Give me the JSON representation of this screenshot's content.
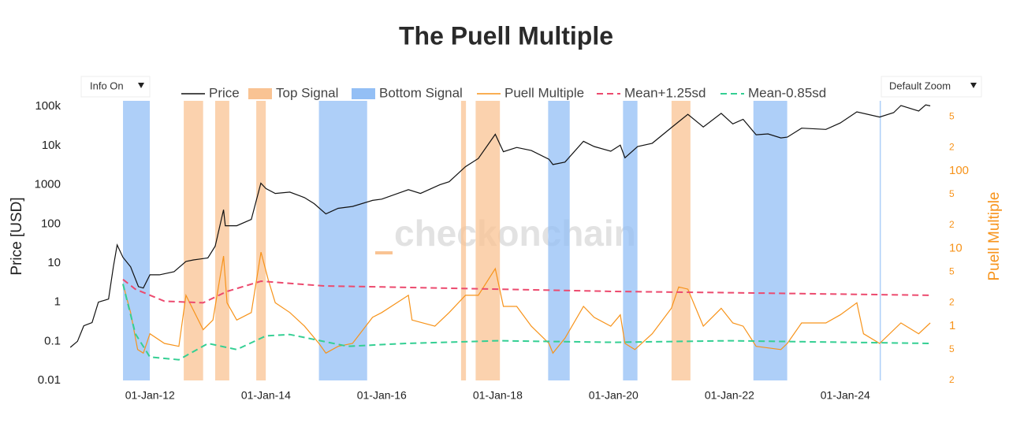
{
  "chart_data": {
    "type": "line",
    "title": "The Puell Multiple",
    "controls": [
      "Info On",
      "Default Zoom"
    ],
    "watermark": "checkonchain",
    "y_label": "Price [USD]",
    "y2_label": "Puell Multiple",
    "log_y": true,
    "log_y2": true,
    "grid": false,
    "xlim": [
      "2010-07-27",
      "2025-08-08"
    ],
    "xticks": [
      {
        "value": "2012-01-01",
        "label": "01-Jan-12"
      },
      {
        "value": "2014-01-01",
        "label": "01-Jan-14"
      },
      {
        "value": "2016-01-01",
        "label": "01-Jan-16"
      },
      {
        "value": "2018-01-01",
        "label": "01-Jan-18"
      },
      {
        "value": "2020-01-01",
        "label": "01-Jan-20"
      },
      {
        "value": "2022-01-01",
        "label": "01-Jan-22"
      },
      {
        "value": "2024-01-01",
        "label": "01-Jan-24"
      }
    ],
    "ylim": [
      0.01,
      140000
    ],
    "yticks": [
      0.01,
      0.1,
      1,
      10,
      100,
      1000,
      {
        "value": 10000,
        "label": "10k"
      },
      {
        "value": 100000,
        "label": "100k"
      }
    ],
    "y2lim": [
      0.2,
      800
    ],
    "y2ticks": [
      {
        "value": 0.2,
        "label": "2"
      },
      {
        "value": 0.5,
        "label": "5"
      },
      1,
      {
        "value": 2,
        "label": "2"
      },
      {
        "value": 5,
        "label": "5"
      },
      10,
      {
        "value": 20,
        "label": "2"
      },
      {
        "value": 50,
        "label": "5"
      },
      100,
      {
        "value": 200,
        "label": "2"
      },
      {
        "value": 500,
        "label": "5"
      }
    ],
    "y2_color": "#f7931a",
    "series": [
      {
        "name": "Price",
        "color": "#111111",
        "x": [
          "2010-08-17",
          "2010-10-01",
          "2010-11-10",
          "2011-01-01",
          "2011-02-10",
          "2011-04-15",
          "2011-05-15",
          "2011-06-08",
          "2011-07-15",
          "2011-09-01",
          "2011-10-20",
          "2011-11-20",
          "2012-01-01",
          "2012-03-01",
          "2012-06-01",
          "2012-08-15",
          "2012-10-01",
          "2012-12-31",
          "2013-02-15",
          "2013-04-09",
          "2013-04-20",
          "2013-07-01",
          "2013-10-01",
          "2013-11-30",
          "2014-01-01",
          "2014-03-01",
          "2014-06-01",
          "2014-09-01",
          "2014-11-01",
          "2015-01-14",
          "2015-04-01",
          "2015-07-01",
          "2015-11-04",
          "2016-01-01",
          "2016-06-17",
          "2016-09-01",
          "2017-01-01",
          "2017-03-01",
          "2017-06-12",
          "2017-09-01",
          "2017-12-17",
          "2018-02-06",
          "2018-05-01",
          "2018-08-01",
          "2018-11-20",
          "2018-12-15",
          "2019-03-01",
          "2019-06-26",
          "2019-09-01",
          "2019-12-15",
          "2020-02-13",
          "2020-03-13",
          "2020-06-01",
          "2020-09-01",
          "2020-12-31",
          "2021-04-14",
          "2021-07-20",
          "2021-11-10",
          "2022-01-22",
          "2022-03-28",
          "2022-06-18",
          "2022-09-01",
          "2022-11-21",
          "2023-01-01",
          "2023-04-01",
          "2023-09-01",
          "2023-12-01",
          "2024-03-14",
          "2024-08-05",
          "2024-11-01",
          "2024-12-17",
          "2025-04-08",
          "2025-05-22",
          "2025-06-20"
        ],
        "values": [
          0.07,
          0.1,
          0.25,
          0.3,
          1,
          1.2,
          8,
          29,
          14,
          8,
          2.5,
          2.3,
          5,
          5,
          6,
          11,
          12,
          13.5,
          27,
          230,
          90,
          90,
          130,
          1100,
          800,
          600,
          650,
          470,
          330,
          180,
          250,
          280,
          400,
          430,
          750,
          600,
          1000,
          1200,
          2900,
          4700,
          19500,
          7000,
          9000,
          7500,
          4500,
          3300,
          3800,
          12900,
          9500,
          7200,
          10300,
          4900,
          9500,
          11500,
          29000,
          63000,
          30000,
          67000,
          36000,
          47000,
          19000,
          20000,
          15800,
          16500,
          28000,
          26000,
          38000,
          73000,
          54000,
          70000,
          106000,
          77000,
          110000,
          104000
        ]
      },
      {
        "name": "Top Signal",
        "color": "#f9c393",
        "ranges": [
          [
            "2012-08-01",
            "2012-12-01"
          ],
          [
            "2013-02-15",
            "2013-05-15"
          ],
          [
            "2013-11-01",
            "2013-12-31"
          ],
          [
            "2017-05-15",
            "2017-06-15"
          ],
          [
            "2017-08-15",
            "2018-01-15"
          ],
          [
            "2021-01-01",
            "2021-04-30"
          ]
        ]
      },
      {
        "name": "Bottom Signal",
        "color": "#93bff5",
        "ranges": [
          [
            "2011-07-15",
            "2011-12-31"
          ],
          [
            "2014-12-01",
            "2015-10-01"
          ],
          [
            "2018-11-15",
            "2019-03-31"
          ],
          [
            "2020-03-01",
            "2020-05-31"
          ],
          [
            "2022-06-01",
            "2022-12-31"
          ],
          [
            "2024-08-05",
            "2024-08-10"
          ]
        ]
      },
      {
        "name": "Puell Multiple",
        "color": "#f7931a",
        "axis": "y2",
        "x": [
          "2011-07-15",
          "2011-09-01",
          "2011-10-15",
          "2011-11-20",
          "2012-01-01",
          "2012-04-01",
          "2012-07-01",
          "2012-08-15",
          "2012-12-01",
          "2013-02-01",
          "2013-04-09",
          "2013-05-01",
          "2013-07-01",
          "2013-10-01",
          "2013-12-01",
          "2014-01-15",
          "2014-03-01",
          "2014-06-01",
          "2014-09-01",
          "2014-12-01",
          "2015-01-14",
          "2015-04-01",
          "2015-07-01",
          "2015-11-04",
          "2016-01-01",
          "2016-06-17",
          "2016-07-10",
          "2016-12-01",
          "2017-03-01",
          "2017-06-12",
          "2017-09-01",
          "2017-12-17",
          "2018-02-06",
          "2018-05-01",
          "2018-08-01",
          "2018-11-20",
          "2018-12-15",
          "2019-03-01",
          "2019-06-26",
          "2019-09-01",
          "2019-12-15",
          "2020-02-13",
          "2020-03-13",
          "2020-05-15",
          "2020-09-01",
          "2020-12-31",
          "2021-02-15",
          "2021-04-14",
          "2021-07-20",
          "2021-11-10",
          "2022-01-22",
          "2022-03-28",
          "2022-06-18",
          "2022-11-21",
          "2023-01-01",
          "2023-04-01",
          "2023-09-01",
          "2023-12-01",
          "2024-03-14",
          "2024-04-25",
          "2024-08-05",
          "2024-12-17",
          "2025-04-08",
          "2025-06-20"
        ],
        "values": [
          3.5,
          1.5,
          0.5,
          0.45,
          0.8,
          0.6,
          0.55,
          2.5,
          0.9,
          1.2,
          8,
          2,
          1.2,
          1.5,
          9,
          4,
          2,
          1.5,
          1,
          0.6,
          0.45,
          0.55,
          0.6,
          1.3,
          1.5,
          2.5,
          1.2,
          1,
          1.5,
          2.5,
          2.5,
          5.5,
          1.8,
          1.8,
          1,
          0.6,
          0.45,
          0.7,
          1.8,
          1.3,
          1,
          1.4,
          0.6,
          0.5,
          0.8,
          1.7,
          3.2,
          3,
          1,
          1.7,
          1.1,
          1,
          0.55,
          0.5,
          0.6,
          1.1,
          1.1,
          1.4,
          2,
          0.8,
          0.6,
          1.1,
          0.8,
          1.1
        ]
      },
      {
        "name": "Mean+1.25sd",
        "color": "#ec4a6e",
        "axis": "y2",
        "dash": true,
        "x": [
          "2011-07-15",
          "2011-10-01",
          "2012-04-01",
          "2012-12-01",
          "2013-05-01",
          "2013-12-01",
          "2015-01-01",
          "2016-01-01",
          "2018-01-01",
          "2020-01-01",
          "2022-01-01",
          "2025-06-20"
        ],
        "values": [
          4,
          3,
          2.1,
          2,
          2.8,
          3.8,
          3.3,
          3.2,
          3,
          2.8,
          2.7,
          2.5
        ]
      },
      {
        "name": "Mean-0.85sd",
        "color": "#34cf93",
        "axis": "y2",
        "dash": true,
        "x": [
          "2011-07-15",
          "2011-10-01",
          "2012-01-01",
          "2012-07-01",
          "2013-01-01",
          "2013-07-01",
          "2014-01-01",
          "2014-06-01",
          "2015-06-01",
          "2016-06-01",
          "2018-01-01",
          "2020-01-01",
          "2022-01-01",
          "2025-06-20"
        ],
        "values": [
          3.5,
          0.8,
          0.4,
          0.37,
          0.6,
          0.5,
          0.75,
          0.78,
          0.55,
          0.6,
          0.65,
          0.62,
          0.65,
          0.6
        ]
      }
    ]
  }
}
